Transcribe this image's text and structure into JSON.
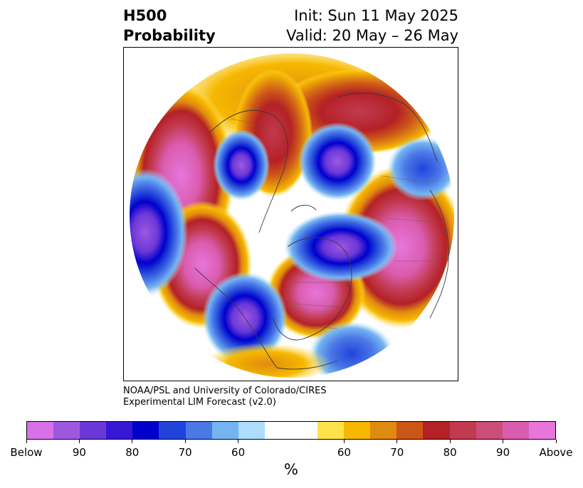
{
  "header": {
    "variable": "H500",
    "product": "Probability",
    "init": "Init: Sun 11 May 2025",
    "valid": "Valid: 20 May – 26 May"
  },
  "credit": {
    "line1": "NOAA/PSL and University of Colorado/CIRES",
    "line2": "Experimental LIM Forecast (v2.0)"
  },
  "colorbar": {
    "colors": [
      "#d671e8",
      "#9e58e0",
      "#6b38d8",
      "#3618d4",
      "#0000cd",
      "#2143da",
      "#4a78e6",
      "#74b4f2",
      "#aedcfb",
      "#ffffff",
      "#ffffff",
      "#ffe14a",
      "#f6b800",
      "#e08a10",
      "#cc5518",
      "#b42126",
      "#c23a50",
      "#cc4e78",
      "#da5cae",
      "#e676dc"
    ],
    "labels": [
      "Below",
      "90",
      "80",
      "70",
      "60",
      "60",
      "70",
      "80",
      "90",
      "Above"
    ],
    "units": "%"
  },
  "map": {
    "projection": "north-polar-stereographic"
  }
}
